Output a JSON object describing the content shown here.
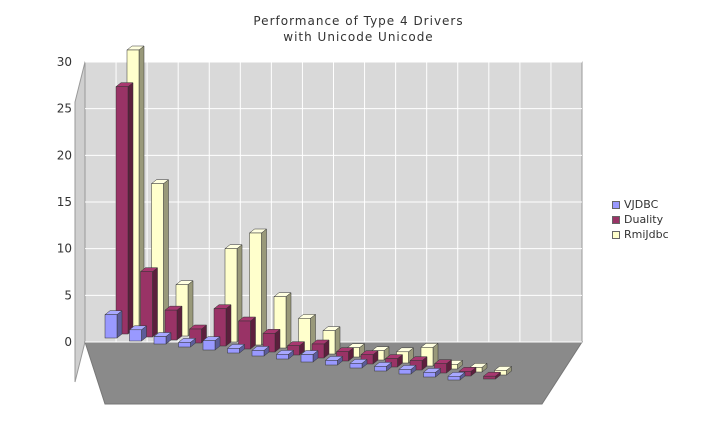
{
  "chart_data": {
    "type": "bar",
    "title": "Performance of Type 4 Drivers",
    "subtitle": "with Unicode Unicode",
    "xlabel": "",
    "ylabel": "",
    "ylim": [
      0,
      30
    ],
    "yticks": [
      0,
      5,
      10,
      15,
      20,
      25,
      30
    ],
    "grid": true,
    "legend_position": "right",
    "categories": [
      "",
      "",
      "",
      "",
      "",
      "",
      "",
      "",
      "",
      "",
      "",
      "",
      "",
      "",
      "",
      "",
      "",
      ""
    ],
    "series": [
      {
        "name": "VJDBC",
        "color": "#9999ff",
        "values": [
          2.5,
          1.2,
          0.8,
          0.5,
          1.0,
          0.5,
          0.6,
          0.5,
          0.8,
          0.5,
          0.5,
          0.5,
          0.5,
          0.5,
          0.4,
          0,
          0,
          0
        ]
      },
      {
        "name": "Duality",
        "color": "#993366",
        "values": [
          26.5,
          7.0,
          3.2,
          1.5,
          4.0,
          3.0,
          2.0,
          1.0,
          1.5,
          1.0,
          1.0,
          0.9,
          1.0,
          1.0,
          0.5,
          0.3,
          0,
          0
        ]
      },
      {
        "name": "RmiJdbc",
        "color": "#ffffcc",
        "values": [
          30.0,
          16.0,
          5.5,
          0,
          10.0,
          12.0,
          5.5,
          3.5,
          2.5,
          1.0,
          1.0,
          1.2,
          2.0,
          0.5,
          0.5,
          0.5,
          0,
          0
        ]
      }
    ]
  }
}
